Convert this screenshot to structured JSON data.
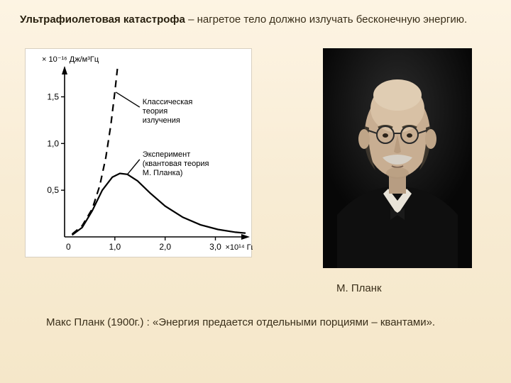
{
  "heading": {
    "bold": "Ультрафиолетовая катастрофа",
    "rest": " – нагретое тело должно излучать бесконечную энергию."
  },
  "portrait_caption": "М. Планк",
  "quote": "Макс Планк (1900г.) : «Энергия предается отдельными порциями – квантами».",
  "chart": {
    "type": "line",
    "background_color": "#ffffff",
    "axis_color": "#000000",
    "line_width": 2.2,
    "y_axis": {
      "label": "× 10⁻¹⁶ Дж/м³Гц",
      "ticks": [
        "0,5",
        "1,0",
        "1,5"
      ],
      "ylim": [
        0,
        1.8
      ],
      "tick_values": [
        0.5,
        1.0,
        1.5
      ]
    },
    "x_axis": {
      "label": "×10¹⁴ Гц",
      "ticks": [
        "0",
        "1,0",
        "2,0",
        "3,0"
      ],
      "xlim": [
        0,
        3.6
      ],
      "tick_values": [
        0,
        1.0,
        2.0,
        3.0
      ]
    },
    "series": [
      {
        "name": "classical",
        "label_lines": [
          "Классическая",
          "теория",
          "излучения"
        ],
        "style": "dashed",
        "color": "#000000",
        "points": [
          [
            0.15,
            0.03
          ],
          [
            0.35,
            0.12
          ],
          [
            0.55,
            0.3
          ],
          [
            0.7,
            0.55
          ],
          [
            0.82,
            0.85
          ],
          [
            0.92,
            1.2
          ],
          [
            1.0,
            1.55
          ],
          [
            1.05,
            1.8
          ]
        ]
      },
      {
        "name": "experiment",
        "label_lines": [
          "Эксперимент",
          "(квантовая теория",
          "М. Планка)"
        ],
        "style": "solid",
        "color": "#000000",
        "points": [
          [
            0.15,
            0.02
          ],
          [
            0.35,
            0.1
          ],
          [
            0.55,
            0.28
          ],
          [
            0.75,
            0.5
          ],
          [
            0.95,
            0.64
          ],
          [
            1.1,
            0.68
          ],
          [
            1.25,
            0.67
          ],
          [
            1.45,
            0.6
          ],
          [
            1.7,
            0.47
          ],
          [
            2.0,
            0.33
          ],
          [
            2.35,
            0.21
          ],
          [
            2.7,
            0.13
          ],
          [
            3.05,
            0.08
          ],
          [
            3.4,
            0.05
          ],
          [
            3.6,
            0.04
          ]
        ]
      }
    ],
    "label_fontsize": 11,
    "tick_fontsize": 12
  }
}
